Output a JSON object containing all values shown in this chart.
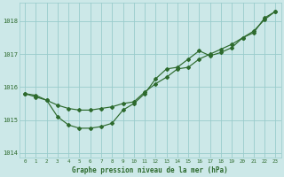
{
  "hours": [
    0,
    1,
    2,
    3,
    4,
    5,
    6,
    7,
    8,
    9,
    10,
    11,
    12,
    13,
    14,
    15,
    16,
    17,
    18,
    19,
    20,
    21,
    22,
    23
  ],
  "series1": [
    1015.8,
    1015.7,
    1015.6,
    1015.1,
    1014.85,
    1014.75,
    1014.75,
    1014.8,
    1014.9,
    1015.3,
    1015.5,
    1015.8,
    1016.25,
    1016.55,
    1016.6,
    1016.85,
    1017.1,
    1016.95,
    1017.05,
    1017.2,
    1017.5,
    1017.65,
    1018.1,
    1018.3
  ],
  "series2": [
    1015.8,
    1015.75,
    1015.6,
    1015.45,
    1015.35,
    1015.3,
    1015.3,
    1015.35,
    1015.4,
    1015.5,
    1015.55,
    1015.85,
    1016.1,
    1016.3,
    1016.55,
    1016.6,
    1016.85,
    1017.0,
    1017.15,
    1017.3,
    1017.5,
    1017.7,
    1018.05,
    1018.3
  ],
  "line_color": "#2d6a2d",
  "bg_color": "#cce8e8",
  "grid_color": "#99cccc",
  "title": "Graphe pression niveau de la mer (hPa)",
  "ylim": [
    1013.85,
    1018.55
  ],
  "yticks": [
    1014,
    1015,
    1016,
    1017,
    1018
  ],
  "xlim": [
    -0.5,
    23.5
  ],
  "figwidth": 3.2,
  "figheight": 2.0,
  "dpi": 100
}
